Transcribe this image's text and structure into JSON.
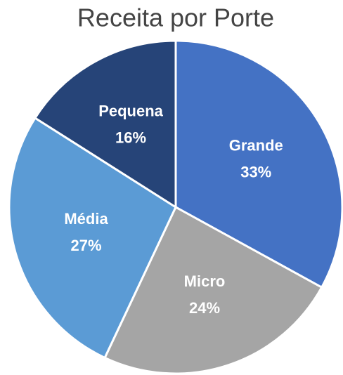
{
  "chart_data": {
    "type": "pie",
    "title": "Receita por Porte",
    "categories": [
      "Grande",
      "Micro",
      "Média",
      "Pequena"
    ],
    "values": [
      33,
      24,
      27,
      16
    ],
    "value_labels": [
      "33%",
      "24%",
      "27%",
      "16%"
    ],
    "colors": [
      "#4472c4",
      "#a5a5a5",
      "#5b9bd5",
      "#264478"
    ]
  }
}
